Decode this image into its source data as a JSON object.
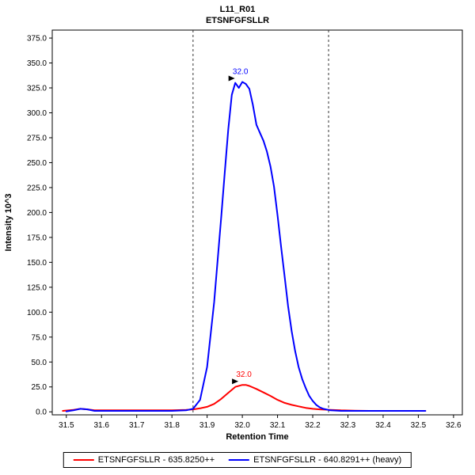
{
  "chart_data": {
    "type": "line",
    "title": "L11_R01",
    "subtitle": "ETSNFGFSLLR",
    "xlabel": "Retention Time",
    "ylabel": "Intensity 10^3",
    "xlim": [
      31.46,
      32.625
    ],
    "ylim": [
      -3,
      383
    ],
    "x_ticks": {
      "start": 31.5,
      "end": 32.6,
      "step": 0.1,
      "decimals": 1
    },
    "y_ticks": {
      "start": 0,
      "end": 375,
      "step": 25,
      "decimals": 1
    },
    "grid": false,
    "legend_position": "bottom",
    "boundaries": {
      "color": "#333333",
      "dash": "3,3",
      "x_values": [
        31.86,
        32.245
      ]
    },
    "series": [
      {
        "name": "ETSNFGFSLLR - 635.8250++",
        "color": "#ff0000",
        "points": [
          [
            31.49,
            1
          ],
          [
            31.52,
            2
          ],
          [
            31.54,
            3
          ],
          [
            31.56,
            2.5
          ],
          [
            31.58,
            1.5
          ],
          [
            31.62,
            1.5
          ],
          [
            31.68,
            1.5
          ],
          [
            31.74,
            1.5
          ],
          [
            31.8,
            1.5
          ],
          [
            31.84,
            2
          ],
          [
            31.86,
            2.5
          ],
          [
            31.88,
            3.5
          ],
          [
            31.9,
            5
          ],
          [
            31.92,
            8
          ],
          [
            31.94,
            13
          ],
          [
            31.96,
            19
          ],
          [
            31.98,
            25
          ],
          [
            32.0,
            27
          ],
          [
            32.01,
            27
          ],
          [
            32.02,
            26
          ],
          [
            32.04,
            23
          ],
          [
            32.06,
            19.5
          ],
          [
            32.08,
            16
          ],
          [
            32.1,
            12
          ],
          [
            32.12,
            9
          ],
          [
            32.14,
            7
          ],
          [
            32.16,
            5.5
          ],
          [
            32.18,
            4
          ],
          [
            32.2,
            3
          ],
          [
            32.22,
            2.5
          ],
          [
            32.25,
            2
          ],
          [
            32.28,
            1.5
          ],
          [
            32.32,
            1.2
          ],
          [
            32.36,
            1
          ],
          [
            32.4,
            1
          ],
          [
            32.45,
            1
          ],
          [
            32.5,
            1
          ],
          [
            32.52,
            1
          ]
        ]
      },
      {
        "name": "ETSNFGFSLLR - 640.8291++ (heavy)",
        "color": "#0000ff",
        "points": [
          [
            31.5,
            0.5
          ],
          [
            31.52,
            1.5
          ],
          [
            31.54,
            3
          ],
          [
            31.56,
            2.5
          ],
          [
            31.58,
            1
          ],
          [
            31.62,
            1
          ],
          [
            31.68,
            1
          ],
          [
            31.74,
            1
          ],
          [
            31.8,
            1
          ],
          [
            31.84,
            1.5
          ],
          [
            31.86,
            3
          ],
          [
            31.88,
            12
          ],
          [
            31.9,
            45
          ],
          [
            31.92,
            110
          ],
          [
            31.94,
            195
          ],
          [
            31.95,
            240
          ],
          [
            31.96,
            283
          ],
          [
            31.97,
            318
          ],
          [
            31.98,
            330
          ],
          [
            31.99,
            325
          ],
          [
            32.0,
            331
          ],
          [
            32.01,
            329
          ],
          [
            32.02,
            324
          ],
          [
            32.03,
            308
          ],
          [
            32.04,
            288
          ],
          [
            32.05,
            280
          ],
          [
            32.06,
            272
          ],
          [
            32.07,
            261
          ],
          [
            32.08,
            246
          ],
          [
            32.09,
            226
          ],
          [
            32.1,
            197
          ],
          [
            32.11,
            166
          ],
          [
            32.12,
            136
          ],
          [
            32.13,
            106
          ],
          [
            32.14,
            81
          ],
          [
            32.15,
            61
          ],
          [
            32.16,
            45
          ],
          [
            32.17,
            33
          ],
          [
            32.18,
            24
          ],
          [
            32.19,
            16
          ],
          [
            32.2,
            11
          ],
          [
            32.21,
            7
          ],
          [
            32.22,
            4.5
          ],
          [
            32.23,
            3
          ],
          [
            32.25,
            1.5
          ],
          [
            32.28,
            1
          ],
          [
            32.32,
            1
          ],
          [
            32.36,
            1
          ],
          [
            32.4,
            1
          ],
          [
            32.45,
            1
          ],
          [
            32.5,
            1
          ],
          [
            32.52,
            1
          ]
        ]
      }
    ],
    "annotations": [
      {
        "label": "32.0",
        "x": 32.0,
        "y": 27,
        "color": "#ff0000"
      },
      {
        "label": "32.0",
        "x": 31.99,
        "y": 331,
        "color": "#0000ff"
      }
    ]
  }
}
